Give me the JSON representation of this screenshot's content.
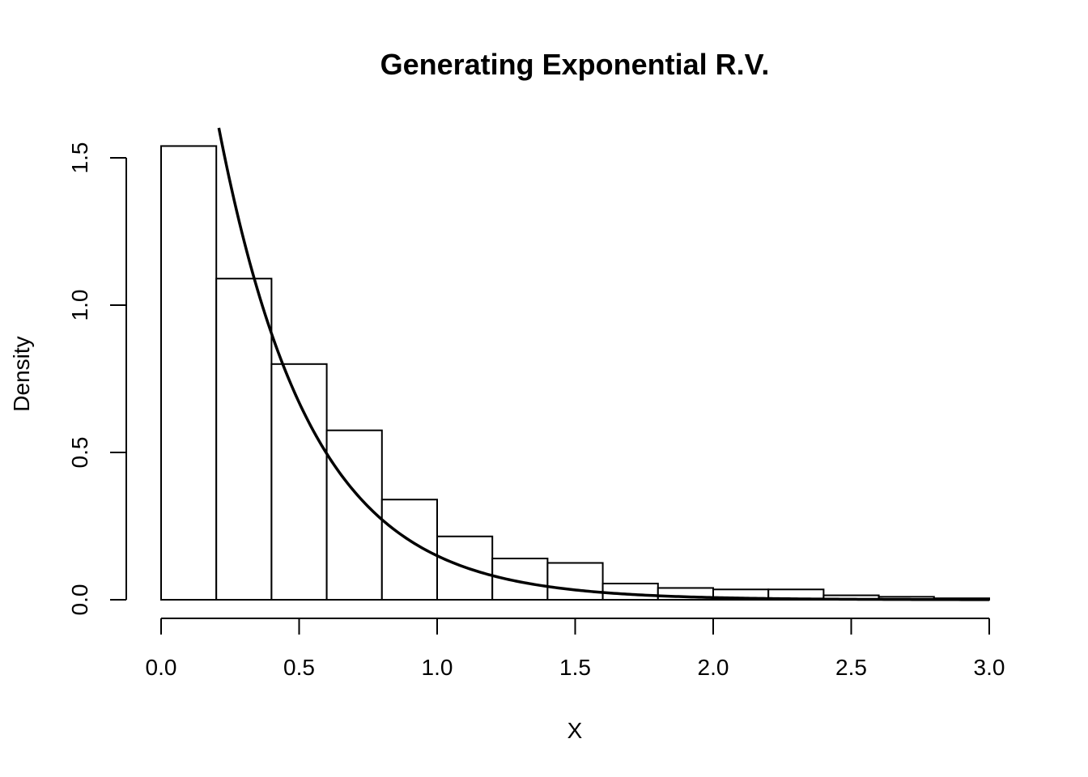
{
  "chart_data": {
    "type": "histogram",
    "title": "Generating Exponential R.V.",
    "xlabel": "X",
    "ylabel": "Density",
    "xlim": [
      0,
      3
    ],
    "ylim": [
      0,
      1.6
    ],
    "x_ticks": [
      "0.0",
      "0.5",
      "1.0",
      "1.5",
      "2.0",
      "2.5",
      "3.0"
    ],
    "y_ticks": [
      "0.0",
      "0.5",
      "1.0",
      "1.5"
    ],
    "bin_edges": [
      0.0,
      0.2,
      0.4,
      0.6,
      0.8,
      1.0,
      1.2,
      1.4,
      1.6,
      1.8,
      2.0,
      2.2,
      2.4,
      2.6,
      2.8,
      3.0
    ],
    "densities": [
      1.54,
      1.09,
      0.8,
      0.575,
      0.34,
      0.215,
      0.14,
      0.125,
      0.055,
      0.04,
      0.035,
      0.035,
      0.015,
      0.01,
      0.005
    ],
    "curve": {
      "type": "exponential_density",
      "rate": 3,
      "x_range": [
        0,
        3
      ]
    },
    "grid": false,
    "legend": "none",
    "colors": {
      "bars_fill": "#ffffff",
      "bars_stroke": "#000000",
      "curve": "#000000"
    }
  }
}
